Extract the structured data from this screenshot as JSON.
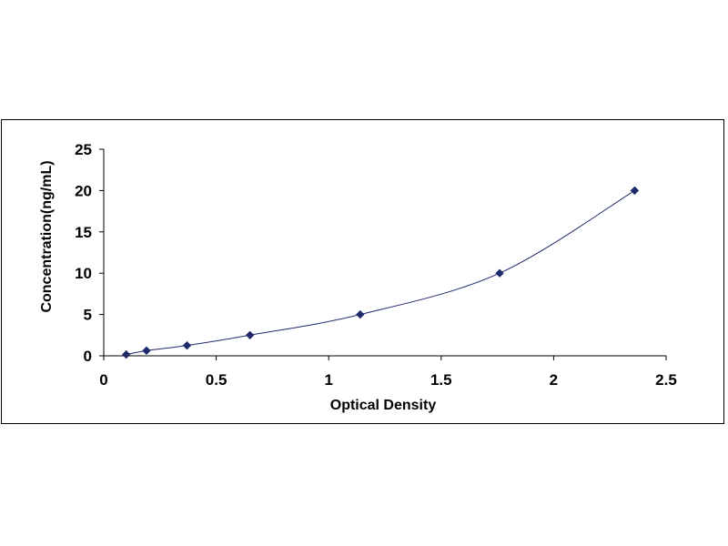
{
  "chart_data": {
    "type": "scatter",
    "title": "",
    "xlabel": "Optical Density",
    "ylabel": "Concentration(ng/mL)",
    "xlim": [
      0,
      2.5
    ],
    "ylim": [
      0,
      25
    ],
    "x_ticks": [
      0,
      0.5,
      1,
      1.5,
      2,
      2.5
    ],
    "x_tick_labels": [
      "0",
      "0.5",
      "1",
      "1.5",
      "2",
      "2.5"
    ],
    "y_ticks": [
      0,
      5,
      10,
      15,
      20,
      25
    ],
    "y_tick_labels": [
      "0",
      "5",
      "10",
      "15",
      "20",
      "25"
    ],
    "grid": false,
    "legend": "none",
    "series": [
      {
        "x": [
          0.1,
          0.19,
          0.37,
          0.65,
          1.14,
          1.76,
          2.36
        ],
        "y": [
          0.156,
          0.625,
          1.25,
          2.5,
          5,
          10,
          20
        ],
        "marker": "diamond",
        "trendline": "polynomial-smooth",
        "color": "#1f2a6b"
      }
    ]
  }
}
